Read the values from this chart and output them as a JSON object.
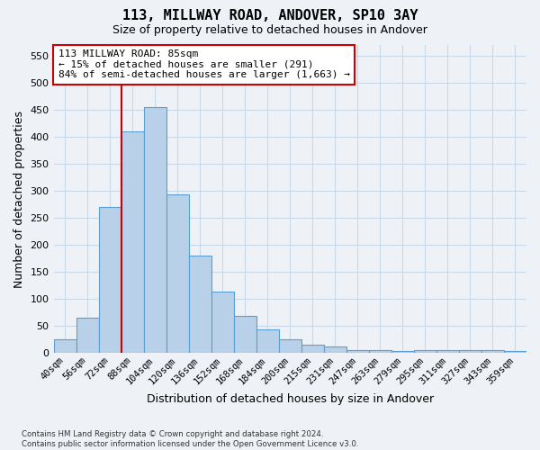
{
  "title": "113, MILLWAY ROAD, ANDOVER, SP10 3AY",
  "subtitle": "Size of property relative to detached houses in Andover",
  "xlabel": "Distribution of detached houses by size in Andover",
  "ylabel": "Number of detached properties",
  "categories": [
    "40sqm",
    "56sqm",
    "72sqm",
    "88sqm",
    "104sqm",
    "120sqm",
    "136sqm",
    "152sqm",
    "168sqm",
    "184sqm",
    "200sqm",
    "215sqm",
    "231sqm",
    "247sqm",
    "263sqm",
    "279sqm",
    "295sqm",
    "311sqm",
    "327sqm",
    "343sqm",
    "359sqm"
  ],
  "values": [
    25,
    65,
    270,
    410,
    455,
    293,
    181,
    113,
    68,
    43,
    26,
    15,
    12,
    6,
    6,
    4,
    6,
    5,
    5,
    5,
    4
  ],
  "bar_color": "#b8d0e8",
  "bar_edge_color": "#5a9fd4",
  "grid_color": "#c8d8e8",
  "background_color": "#eef2f7",
  "vline_color": "#cc0000",
  "vline_x": 2.5,
  "annotation_line1": "113 MILLWAY ROAD: 85sqm",
  "annotation_line2": "← 15% of detached houses are smaller (291)",
  "annotation_line3": "84% of semi-detached houses are larger (1,663) →",
  "annotation_box_color": "#ffffff",
  "annotation_box_edge": "#cc0000",
  "ylim": [
    0,
    570
  ],
  "yticks": [
    0,
    50,
    100,
    150,
    200,
    250,
    300,
    350,
    400,
    450,
    500,
    550
  ],
  "footer_line1": "Contains HM Land Registry data © Crown copyright and database right 2024.",
  "footer_line2": "Contains public sector information licensed under the Open Government Licence v3.0."
}
